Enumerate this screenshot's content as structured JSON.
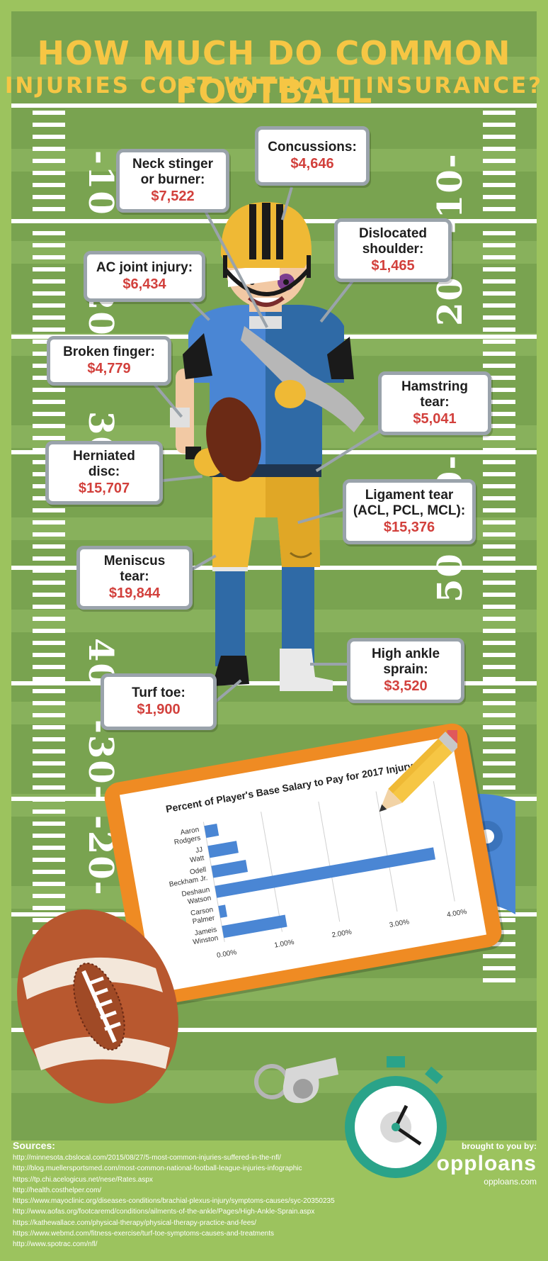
{
  "title": {
    "line1": "HOW MUCH DO COMMON FOOTBALL",
    "line2": "INJURIES COST WITHOUT INSURANCE?"
  },
  "yard_numbers": {
    "left": [
      "-10",
      "20",
      "30",
      "40",
      "-30-",
      "-20-"
    ],
    "right": [
      "-10-",
      "20",
      "-0-",
      "50",
      "30"
    ]
  },
  "injuries": [
    {
      "label": "Neck stinger\nor burner:",
      "cost": "$7,522"
    },
    {
      "label": "Concussions:",
      "cost": "$4,646"
    },
    {
      "label": "Dislocated\nshoulder:",
      "cost": "$1,465"
    },
    {
      "label": "AC joint injury:",
      "cost": "$6,434"
    },
    {
      "label": "Broken finger:",
      "cost": "$4,779"
    },
    {
      "label": "Hamstring\ntear:",
      "cost": "$5,041"
    },
    {
      "label": "Herniated\ndisc:",
      "cost": "$15,707"
    },
    {
      "label": "Ligament tear\n(ACL, PCL, MCL):",
      "cost": "$15,376"
    },
    {
      "label": "Meniscus\ntear:",
      "cost": "$19,844"
    },
    {
      "label": "High ankle\nsprain:",
      "cost": "$3,520"
    },
    {
      "label": "Turf toe:",
      "cost": "$1,900"
    }
  ],
  "chart_data": {
    "type": "bar",
    "orientation": "horizontal",
    "title": "Percent of Player's Base Salary to Pay for 2017 Injury",
    "categories": [
      "Aaron Rodgers",
      "JJ Watt",
      "Odell Beckham Jr.",
      "Deshaun Watson",
      "Carson Palmer",
      "Jameis Winston"
    ],
    "values": [
      0.22,
      0.5,
      0.6,
      3.8,
      0.12,
      1.1
    ],
    "xlim": [
      0,
      4
    ],
    "xticks": [
      "0.00%",
      "1.00%",
      "2.00%",
      "3.00%",
      "4.00%"
    ],
    "color": "#4a86d4",
    "grid": true
  },
  "sources": {
    "title": "Sources:",
    "links": [
      "http://minnesota.cbslocal.com/2015/08/27/5-most-common-injuries-suffered-in-the-nfl/",
      "http://blog.muellersportsmed.com/most-common-national-football-league-injuries-infographic",
      "https://tp.chi.acelogicus.net/nese/Rates.aspx",
      "http://health.costhelper.com/",
      "https://www.mayoclinic.org/diseases-conditions/brachial-plexus-injury/symptoms-causes/syc-20350235",
      "http://www.aofas.org/footcaremd/conditions/ailments-of-the-ankle/Pages/High-Ankle-Sprain.aspx",
      "https://kathewallace.com/physical-therapy/physical-therapy-practice-and-fees/",
      "https://www.webmd.com/fitness-exercise/turf-toe-symptoms-causes-and-treatments",
      "http://www.spotrac.com/nfl/"
    ]
  },
  "brand": {
    "by": "brought to you by:",
    "logo": "opploans",
    "url": "opploans.com"
  },
  "colors": {
    "field_dark": "#79a350",
    "field_light": "#88b15c",
    "border_green": "#9cc35e",
    "title_yellow": "#f6c644",
    "cost_red": "#d2403c",
    "callout_border": "#9aa3ab",
    "jersey_blue_light": "#4a86d4",
    "jersey_blue_dark": "#2f6aa6",
    "helmet_yellow": "#efb935",
    "clipboard_orange": "#ef8b23",
    "ball_brown": "#b8582f",
    "stopwatch_teal": "#2aa389"
  }
}
